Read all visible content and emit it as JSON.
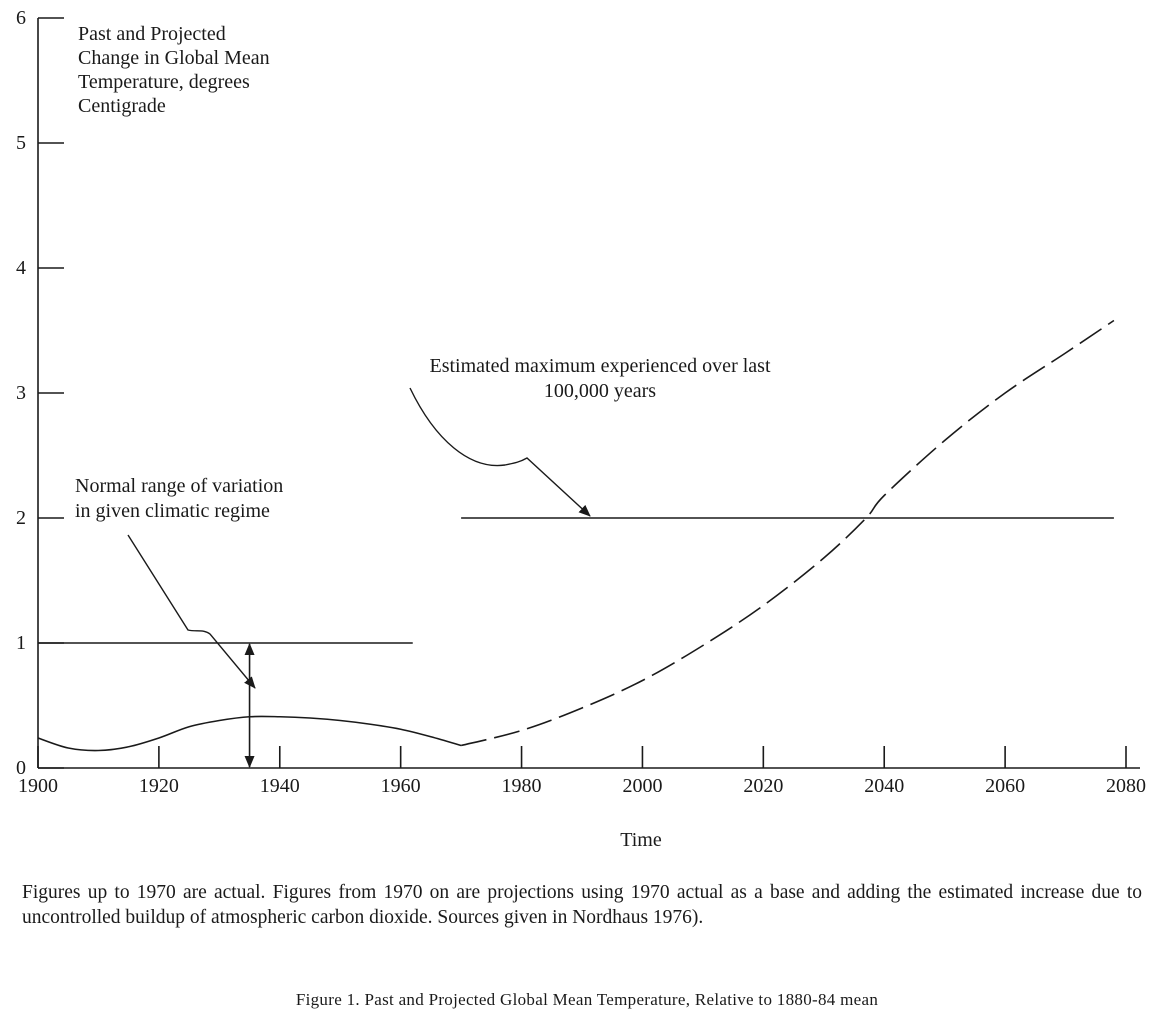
{
  "chart_data": {
    "type": "line",
    "title": "Past and Projected Change in Global Mean Temperature, degrees Centigrade",
    "title_lines": [
      "Past and Projected",
      "Change in Global Mean",
      "Temperature, degrees",
      "Centigrade"
    ],
    "xlabel": "Time",
    "ylabel": "",
    "xlim": [
      1900,
      2080
    ],
    "ylim": [
      0,
      6
    ],
    "x_ticks": [
      1900,
      1920,
      1940,
      1960,
      1980,
      2000,
      2020,
      2040,
      2060,
      2080
    ],
    "y_ticks": [
      0,
      1,
      2,
      3,
      4,
      5,
      6
    ],
    "grid": false,
    "series": [
      {
        "style": "solid",
        "x": [
          1900,
          1905,
          1910,
          1915,
          1920,
          1925,
          1930,
          1935,
          1940,
          1945,
          1950,
          1955,
          1960,
          1965,
          1970
        ],
        "y": [
          0.24,
          0.16,
          0.14,
          0.17,
          0.24,
          0.33,
          0.38,
          0.41,
          0.41,
          0.4,
          0.38,
          0.35,
          0.31,
          0.25,
          0.18
        ]
      },
      {
        "style": "dashed",
        "x": [
          1970,
          1980,
          1990,
          2000,
          2010,
          2020,
          2030,
          2037,
          2040,
          2050,
          2060,
          2070,
          2078
        ],
        "y": [
          0.18,
          0.3,
          0.48,
          0.7,
          0.98,
          1.3,
          1.68,
          2.0,
          2.18,
          2.62,
          3.0,
          3.32,
          3.58
        ]
      }
    ],
    "reference_lines": [
      {
        "y": 1,
        "x_from": 1900,
        "x_to": 1962
      },
      {
        "y": 2,
        "x_from": 1970,
        "x_to": 2078
      }
    ],
    "range_arrow": {
      "x": 1935,
      "y_from": 0,
      "y_to": 1
    },
    "annotations": [
      {
        "text_lines": [
          "Normal range of variation",
          "in given climatic regime"
        ],
        "points_to": {
          "x": 1935,
          "y": 0.7
        }
      },
      {
        "text_lines": [
          "Estimated maximum experienced over last",
          "100,000 years"
        ],
        "points_to": {
          "x": 1988,
          "y": 2
        }
      }
    ]
  },
  "caption": "Figures up to 1970 are actual. Figures from 1970 on are projections using 1970 actual as a base and adding the estimated increase due to uncontrolled buildup of atmospheric carbon dioxide. Sources given in Nordhaus 1976).",
  "figure_title": "Figure 1.    Past and Projected Global Mean Temperature, Relative to 1880-84 mean"
}
